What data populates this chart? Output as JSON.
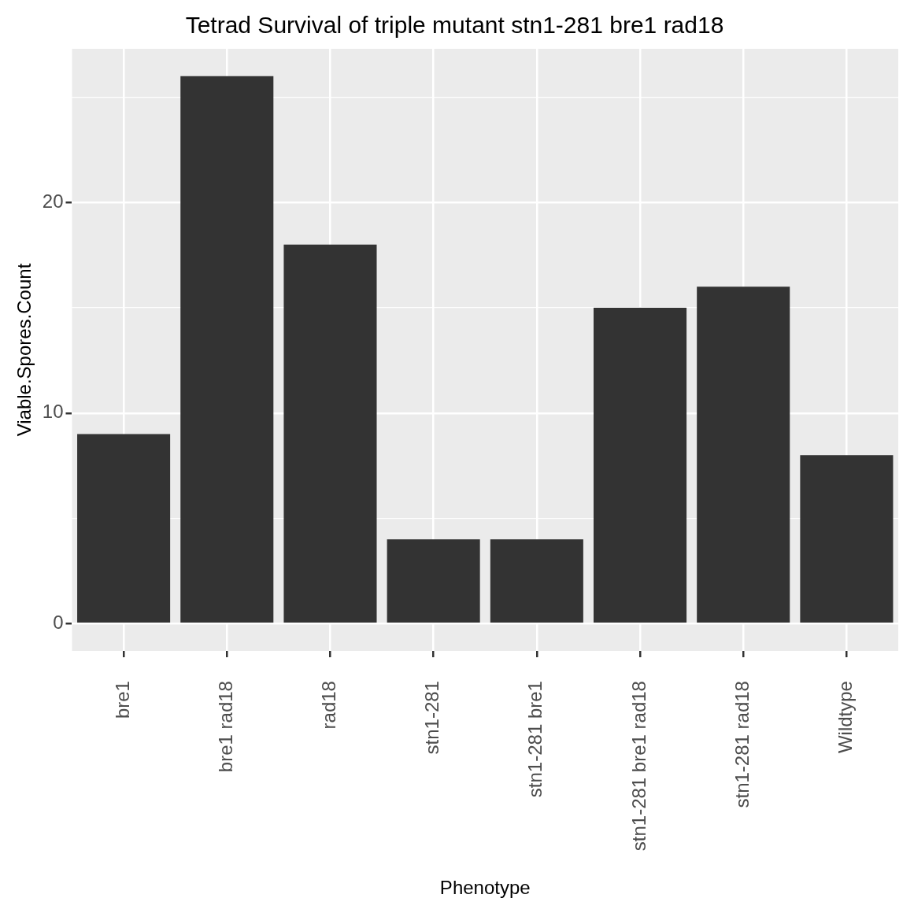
{
  "chart_data": {
    "type": "bar",
    "title": "Tetrad Survival of triple mutant stn1-281 bre1 rad18",
    "xlabel": "Phenotype",
    "ylabel": "Viable.Spores.Count",
    "categories": [
      "bre1",
      "bre1 rad18",
      "rad18",
      "stn1-281",
      "stn1-281 bre1",
      "stn1-281 bre1 rad18",
      "stn1-281 rad18",
      "Wildtype"
    ],
    "values": [
      9,
      26,
      18,
      4,
      4,
      15,
      16,
      8
    ],
    "color": "#333333",
    "ylim": [
      -1.3,
      27.3
    ],
    "yticks": [
      0,
      {
        "value": 5,
        "label": null
      },
      10,
      {
        "value": 15,
        "label": null
      },
      20,
      {
        "value": 25,
        "label": null
      }
    ],
    "grid": true,
    "legend": false
  }
}
